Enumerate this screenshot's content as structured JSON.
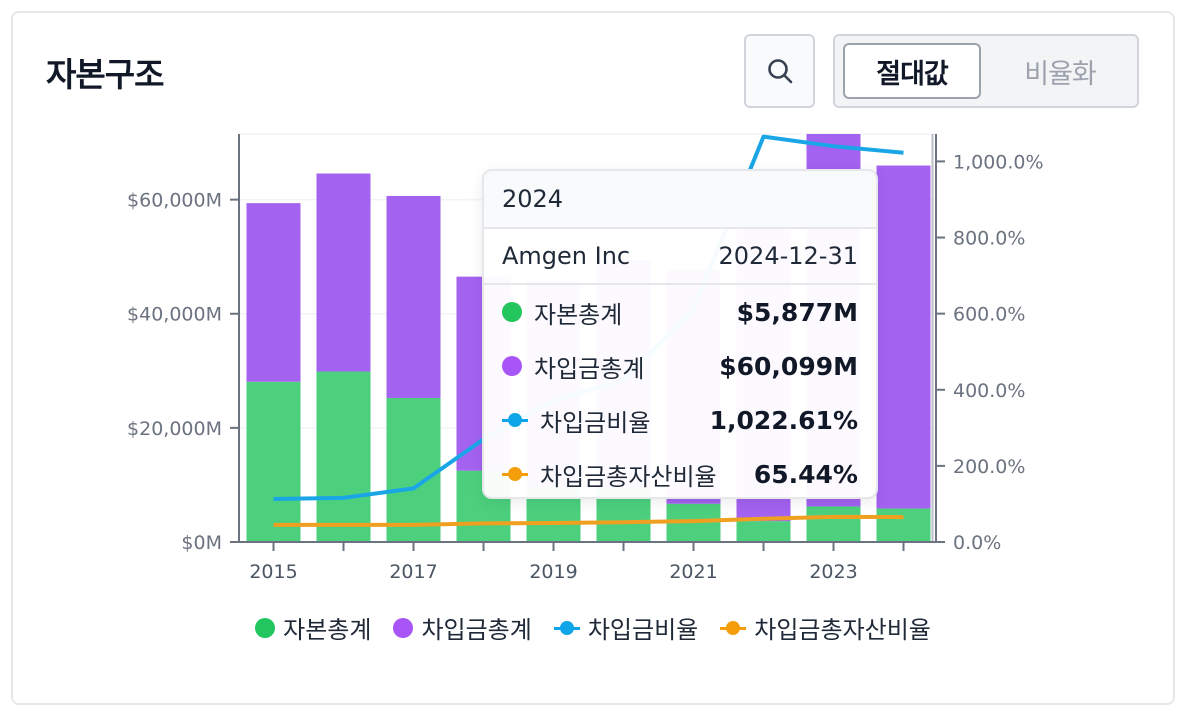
{
  "header": {
    "title": "자본구조",
    "toggle": {
      "absolute": "절대값",
      "ratio": "비율화"
    }
  },
  "colors": {
    "equity": "#4cd07d",
    "borrowings": "#a362f0",
    "debt_ratio": "#1aa6e6",
    "debt_to_assets": "#f0a020"
  },
  "chart_data": {
    "type": "bar",
    "stacked": true,
    "categories": [
      "2015",
      "2016",
      "2017",
      "2018",
      "2019",
      "2020",
      "2021",
      "2022",
      "2023",
      "2024"
    ],
    "x_tick_labels": [
      "2015",
      "2017",
      "2019",
      "2021",
      "2023"
    ],
    "y_left": {
      "min": 0,
      "max": 71500,
      "ticks": [
        0,
        20000,
        40000,
        60000
      ],
      "tick_labels": [
        "$0M",
        "$20,000M",
        "$40,000M",
        "$60,000M"
      ]
    },
    "y_right": {
      "min": 0,
      "max": 1072,
      "ticks": [
        0,
        200,
        400,
        600,
        800,
        1000
      ],
      "tick_labels": [
        "0.0%",
        "200.0%",
        "400.0%",
        "600.0%",
        "800.0%",
        "1,000.0%"
      ]
    },
    "series": [
      {
        "name": "자본총계",
        "kind": "bar",
        "axis": "left",
        "values": [
          28083,
          29875,
          25241,
          12500,
          9673,
          9409,
          6700,
          3661,
          6232,
          5877
        ]
      },
      {
        "name": "차입금총계",
        "kind": "bar",
        "axis": "left",
        "values": [
          31300,
          34700,
          35400,
          34000,
          36000,
          40000,
          41000,
          55000,
          65500,
          60099
        ]
      },
      {
        "name": "차입금비율",
        "kind": "line",
        "axis": "right",
        "values": [
          113,
          116,
          141,
          270,
          372,
          425,
          612,
          1065,
          1040,
          1022.61
        ]
      },
      {
        "name": "차입금총자산비율",
        "kind": "line",
        "axis": "right",
        "values": [
          45,
          45,
          45,
          49,
          50,
          52,
          55,
          61,
          66,
          65.44
        ]
      }
    ],
    "grid": true,
    "legend_position": "bottom"
  },
  "tooltip": {
    "year": "2024",
    "company": "Amgen Inc",
    "date": "2024-12-31",
    "rows": [
      {
        "label": "자본총계",
        "value": "$5,877M"
      },
      {
        "label": "차입금총계",
        "value": "$60,099M"
      },
      {
        "label": "차입금비율",
        "value": "1,022.61%"
      },
      {
        "label": "차입금총자산비율",
        "value": "65.44%"
      }
    ]
  },
  "legend": [
    "자본총계",
    "차입금총계",
    "차입금비율",
    "차입금총자산비율"
  ]
}
